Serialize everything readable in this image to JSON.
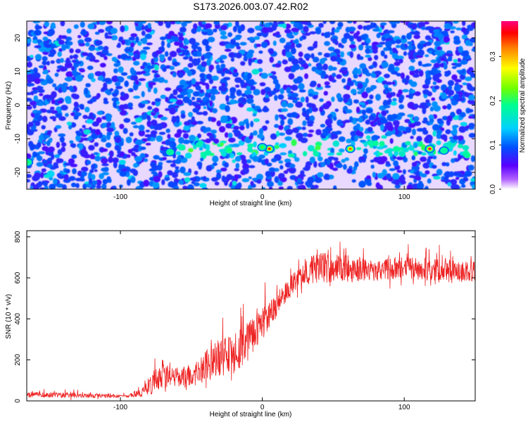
{
  "title": "S173.2026.003.07.42.R02",
  "chart_data": [
    {
      "type": "heatmap",
      "xlabel": "Height of straight line (km)",
      "ylabel": "Frequency (Hz)",
      "xlim": [
        -166,
        150
      ],
      "ylim": [
        -25,
        25
      ],
      "xticks": [
        "-100",
        "0",
        "100"
      ],
      "yticks": [
        "20",
        "10",
        "0",
        "-10",
        "-20"
      ],
      "colorbar": {
        "label": "Normalized spectral amplitude",
        "range": [
          0.0,
          0.38
        ],
        "ticks": [
          "0.0",
          "0.1",
          "0.2",
          "0.3"
        ]
      },
      "band": {
        "frequency": -13,
        "x_start": -60,
        "x_end": 150
      },
      "hotspots": [
        {
          "x": 5,
          "y": -13,
          "value": 0.34
        },
        {
          "x": 62,
          "y": -13,
          "value": 0.33
        },
        {
          "x": 118,
          "y": -13,
          "value": 0.37
        },
        {
          "x": 0,
          "y": -12.5,
          "value": 0.22
        },
        {
          "x": -65,
          "y": -14,
          "value": 0.18
        },
        {
          "x": -165,
          "y": -17,
          "value": 0.2
        },
        {
          "x": 128,
          "y": -13.5,
          "value": 0.19
        }
      ]
    },
    {
      "type": "line",
      "xlabel": "Height of straight line (km)",
      "ylabel": "SNR (10 * v/v)",
      "xlim": [
        -166,
        150
      ],
      "ylim": [
        0,
        830
      ],
      "xticks": [
        "-100",
        "0",
        "100"
      ],
      "yticks": [
        "0",
        "200",
        "400",
        "600",
        "800"
      ],
      "series": [
        {
          "color": "#ee2222",
          "x": [
            -166,
            -150,
            -130,
            -110,
            -95,
            -85,
            -80,
            -75,
            -70,
            -65,
            -60,
            -55,
            -50,
            -45,
            -40,
            -35,
            -30,
            -25,
            -20,
            -15,
            -10,
            -5,
            0,
            5,
            10,
            15,
            20,
            25,
            30,
            40,
            50,
            60,
            80,
            100,
            120,
            140,
            150
          ],
          "y": [
            30,
            30,
            28,
            25,
            22,
            40,
            70,
            100,
            140,
            130,
            120,
            110,
            120,
            140,
            170,
            190,
            210,
            220,
            240,
            260,
            290,
            330,
            380,
            420,
            460,
            520,
            560,
            600,
            630,
            650,
            650,
            645,
            640,
            650,
            640,
            630,
            630
          ],
          "spread": [
            25,
            25,
            25,
            20,
            15,
            40,
            90,
            130,
            150,
            120,
            100,
            130,
            100,
            120,
            150,
            170,
            200,
            180,
            220,
            200,
            200,
            170,
            150,
            130,
            120,
            110,
            100,
            100,
            130,
            150,
            150,
            130,
            110,
            110,
            110,
            100,
            100
          ]
        }
      ]
    }
  ]
}
